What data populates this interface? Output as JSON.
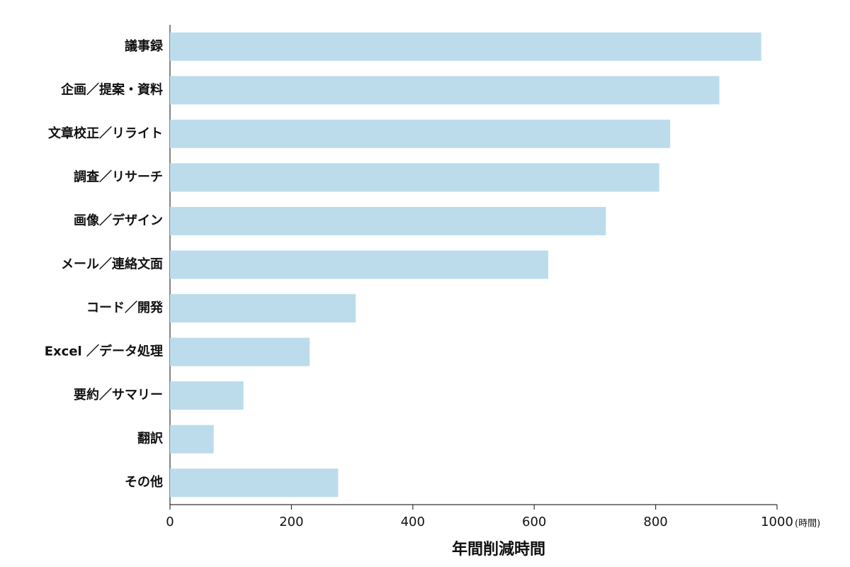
{
  "chart_data": {
    "type": "bar",
    "orientation": "horizontal",
    "categories": [
      "議事録",
      "企画／提案・資料",
      "文章校正／リライト",
      "調査／リサーチ",
      "画像／デザイン",
      "メール／連絡文面",
      "コード／開発",
      "Excel ／データ処理",
      "要約／サマリー",
      "翻訳",
      "その他"
    ],
    "values": [
      974,
      905,
      824,
      806,
      718,
      623,
      306,
      230,
      121,
      72,
      277
    ],
    "color": "#bcdcec",
    "xlim": [
      0,
      1000
    ],
    "xticks": [
      0,
      200,
      400,
      600,
      800,
      1000
    ],
    "x_unit": "(時間)",
    "xlabel": "年間削減時間"
  }
}
